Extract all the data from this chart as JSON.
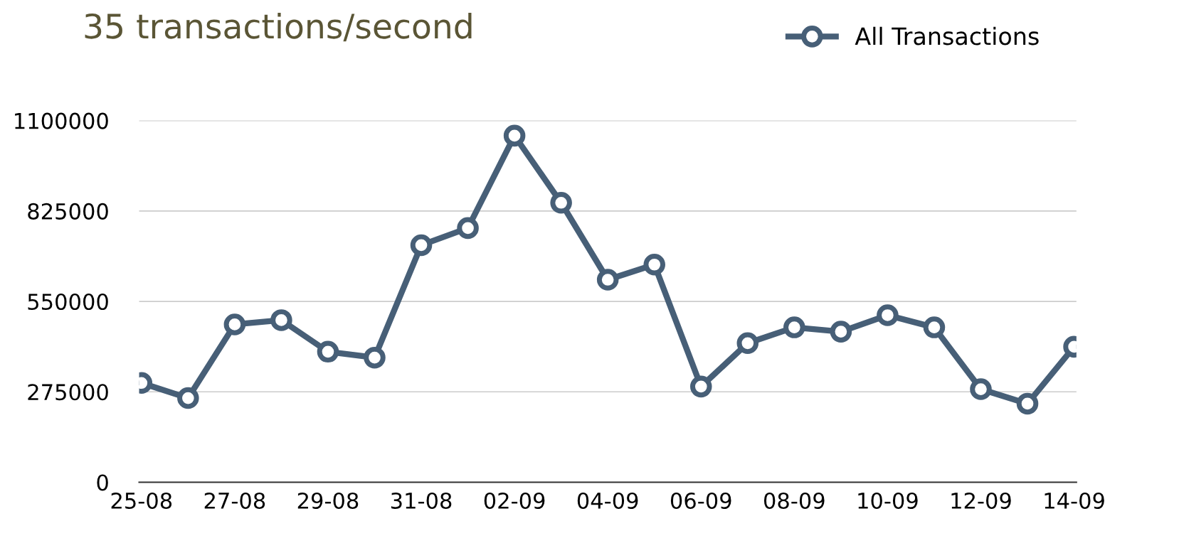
{
  "chart_data": {
    "type": "line",
    "title": "35 transactions/second",
    "categories": [
      "25-08",
      null,
      "27-08",
      null,
      "29-08",
      null,
      "31-08",
      null,
      "02-09",
      null,
      "04-09",
      null,
      "06-09",
      null,
      "08-09",
      null,
      "10-09",
      null,
      "12-09",
      null,
      "14-09"
    ],
    "series": [
      {
        "name": "All Transactions",
        "color": "#475f77",
        "values": [
          302000,
          256000,
          480000,
          493000,
          397000,
          379000,
          721000,
          773000,
          1054000,
          850000,
          616000,
          662000,
          291000,
          423000,
          471000,
          458000,
          508000,
          471000,
          283000,
          239000,
          412000
        ]
      }
    ],
    "ylim": [
      0,
      1100000
    ],
    "yticks": [
      0,
      275000,
      550000,
      825000,
      1100000
    ],
    "grid": "y",
    "legend": "top right",
    "marker": "circle",
    "line_style": "solid"
  }
}
